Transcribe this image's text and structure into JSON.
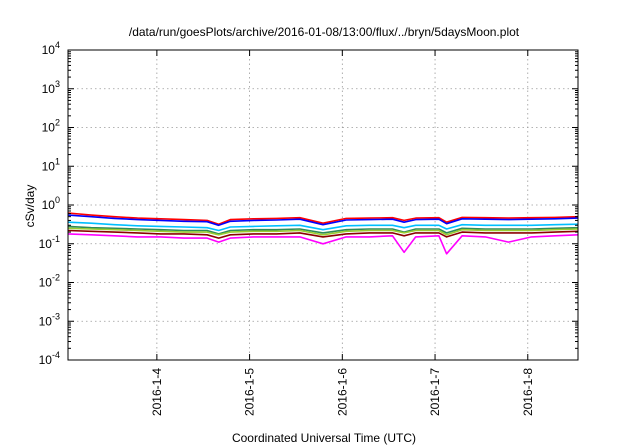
{
  "chart_data": {
    "type": "line",
    "title": "/data/run/goesPlots/archive/2016-01-08/13:00/flux/../bryn/5daysMoon.plot",
    "xlabel": "Coordinated Universal Time (UTC)",
    "ylabel": "cSv/day",
    "yscale": "log",
    "ylim": [
      0.0001,
      10000
    ],
    "y_ticks": [
      {
        "base": "10",
        "exp": "-4",
        "value": 0.0001
      },
      {
        "base": "10",
        "exp": "-3",
        "value": 0.001
      },
      {
        "base": "10",
        "exp": "-2",
        "value": 0.01
      },
      {
        "base": "10",
        "exp": "-1",
        "value": 0.1
      },
      {
        "base": "10",
        "exp": "0",
        "value": 1
      },
      {
        "base": "10",
        "exp": "1",
        "value": 10
      },
      {
        "base": "10",
        "exp": "2",
        "value": 100
      },
      {
        "base": "10",
        "exp": "3",
        "value": 1000
      },
      {
        "base": "10",
        "exp": "4",
        "value": 10000
      }
    ],
    "xlim": [
      "2016-01-03 01:00",
      "2016-01-08 13:00"
    ],
    "x_ticks": [
      {
        "label": "2016-1-4",
        "value": "2016-01-04 00:00"
      },
      {
        "label": "2016-1-5",
        "value": "2016-01-05 00:00"
      },
      {
        "label": "2016-1-6",
        "value": "2016-01-06 00:00"
      },
      {
        "label": "2016-1-7",
        "value": "2016-01-07 00:00"
      },
      {
        "label": "2016-1-8",
        "value": "2016-01-08 00:00"
      }
    ],
    "grid": true,
    "x": [
      "2016-01-03 01:00",
      "2016-01-03 07:00",
      "2016-01-03 13:00",
      "2016-01-03 19:00",
      "2016-01-04 01:00",
      "2016-01-04 07:00",
      "2016-01-04 13:00",
      "2016-01-04 16:00",
      "2016-01-04 19:00",
      "2016-01-05 01:00",
      "2016-01-05 07:00",
      "2016-01-05 13:00",
      "2016-01-05 19:00",
      "2016-01-06 01:00",
      "2016-01-06 07:00",
      "2016-01-06 13:00",
      "2016-01-06 16:00",
      "2016-01-06 19:00",
      "2016-01-07 01:00",
      "2016-01-07 03:00",
      "2016-01-07 07:00",
      "2016-01-07 13:00",
      "2016-01-07 19:00",
      "2016-01-08 01:00",
      "2016-01-08 07:00",
      "2016-01-08 13:00"
    ],
    "series": [
      {
        "color": "#ff0000",
        "values": [
          0.62,
          0.55,
          0.5,
          0.46,
          0.44,
          0.42,
          0.4,
          0.32,
          0.42,
          0.44,
          0.45,
          0.47,
          0.34,
          0.45,
          0.46,
          0.47,
          0.4,
          0.46,
          0.47,
          0.36,
          0.48,
          0.47,
          0.46,
          0.47,
          0.48,
          0.5
        ]
      },
      {
        "color": "#0000ff",
        "values": [
          0.55,
          0.5,
          0.45,
          0.42,
          0.4,
          0.38,
          0.37,
          0.3,
          0.38,
          0.4,
          0.41,
          0.43,
          0.31,
          0.41,
          0.42,
          0.43,
          0.36,
          0.42,
          0.43,
          0.33,
          0.44,
          0.43,
          0.42,
          0.43,
          0.44,
          0.46
        ]
      },
      {
        "color": "#00bfff",
        "values": [
          0.36,
          0.34,
          0.31,
          0.29,
          0.28,
          0.27,
          0.26,
          0.22,
          0.27,
          0.28,
          0.29,
          0.3,
          0.23,
          0.29,
          0.3,
          0.3,
          0.26,
          0.3,
          0.3,
          0.24,
          0.31,
          0.3,
          0.3,
          0.3,
          0.31,
          0.32
        ]
      },
      {
        "color": "#2e8b57",
        "values": [
          0.28,
          0.26,
          0.25,
          0.24,
          0.23,
          0.22,
          0.22,
          0.18,
          0.22,
          0.23,
          0.23,
          0.24,
          0.19,
          0.23,
          0.24,
          0.24,
          0.2,
          0.24,
          0.24,
          0.19,
          0.25,
          0.24,
          0.24,
          0.24,
          0.25,
          0.26
        ]
      },
      {
        "color": "#9acd32",
        "values": [
          0.25,
          0.24,
          0.23,
          0.22,
          0.21,
          0.2,
          0.2,
          0.17,
          0.2,
          0.21,
          0.21,
          0.22,
          0.17,
          0.21,
          0.22,
          0.22,
          0.19,
          0.22,
          0.22,
          0.17,
          0.23,
          0.22,
          0.22,
          0.22,
          0.23,
          0.24
        ]
      },
      {
        "color": "#8b0000",
        "values": [
          0.22,
          0.21,
          0.2,
          0.19,
          0.18,
          0.18,
          0.17,
          0.14,
          0.17,
          0.18,
          0.18,
          0.19,
          0.15,
          0.18,
          0.19,
          0.19,
          0.16,
          0.19,
          0.19,
          0.15,
          0.2,
          0.19,
          0.19,
          0.19,
          0.2,
          0.21
        ]
      },
      {
        "color": "#ff00ff",
        "values": [
          0.18,
          0.17,
          0.16,
          0.15,
          0.15,
          0.14,
          0.14,
          0.11,
          0.14,
          0.15,
          0.15,
          0.15,
          0.1,
          0.15,
          0.15,
          0.16,
          0.06,
          0.15,
          0.16,
          0.055,
          0.16,
          0.15,
          0.11,
          0.15,
          0.16,
          0.17
        ]
      }
    ]
  }
}
